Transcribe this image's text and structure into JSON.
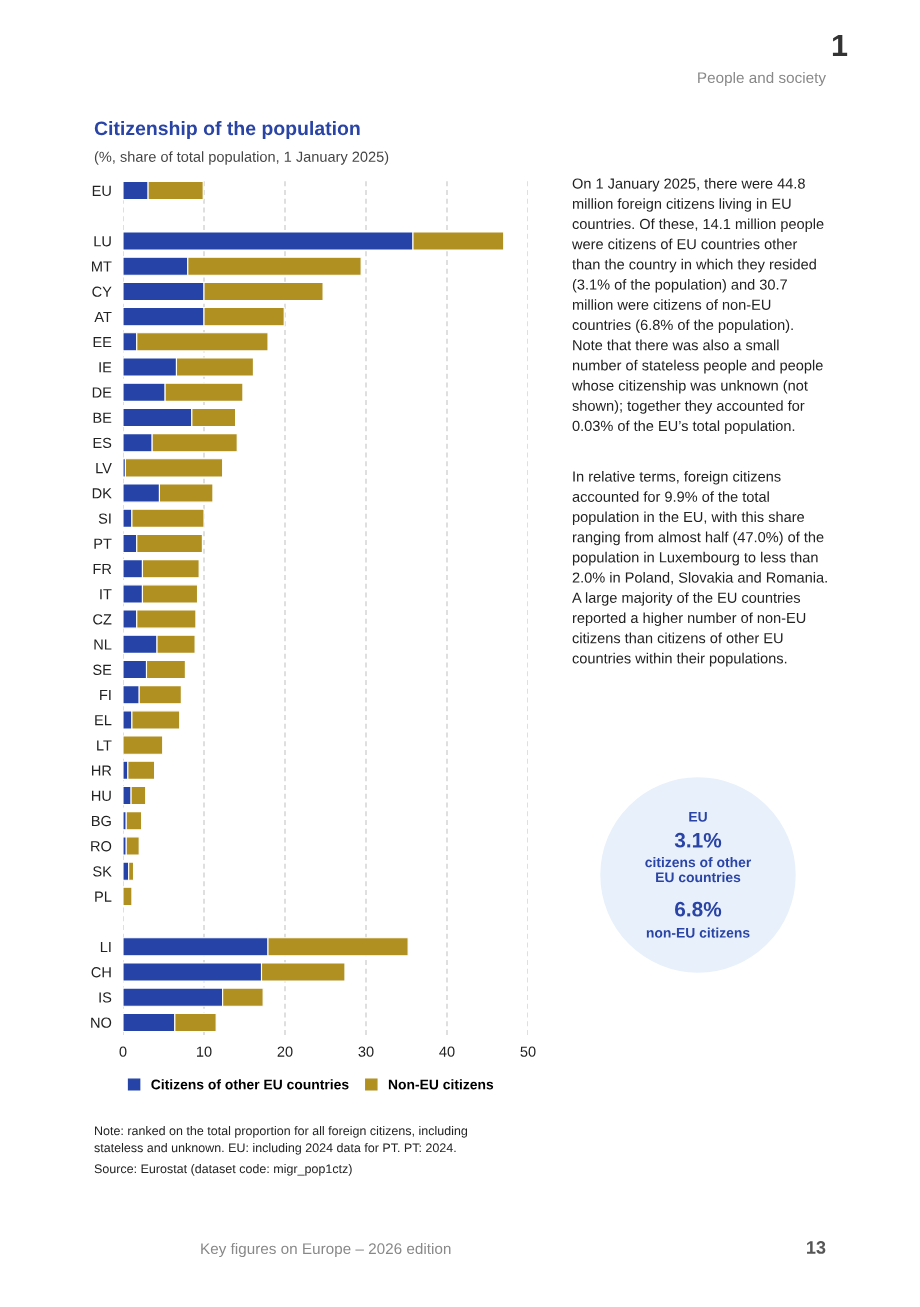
{
  "chart_data": [
    {
      "type": "bar",
      "orientation": "horizontal",
      "stacked": true,
      "title": "Citizenship of the population",
      "subtitle": "(%, share of total population, 1 January 2025)",
      "categories": [
        "EU",
        null,
        "LU",
        "MT",
        "CY",
        "AT",
        "EE",
        "IE",
        "DE",
        "BE",
        "ES",
        "LV",
        "DK",
        "SI",
        "PT",
        "FR",
        "IT",
        "CZ",
        "NL",
        "SE",
        "FI",
        "EL",
        "LT",
        "HR",
        "HU",
        "BG",
        "RO",
        "SK",
        "PL",
        null,
        "LI",
        "CH",
        "IS",
        "NO"
      ],
      "series": [
        {
          "name": "Citizens of other EU countries",
          "color": "#2644a8",
          "values": [
            3.1,
            null,
            35.8,
            8.0,
            10.0,
            10.0,
            1.7,
            6.6,
            5.2,
            8.5,
            3.6,
            0.3,
            4.5,
            1.1,
            1.7,
            2.4,
            2.4,
            1.7,
            4.2,
            2.9,
            2.0,
            1.1,
            null,
            0.6,
            1.0,
            0.4,
            0.4,
            0.7,
            null,
            null,
            17.9,
            17.1,
            12.3,
            6.4
          ]
        },
        {
          "name": "Non-EU citizens",
          "color": "#b09020",
          "values": [
            6.8,
            null,
            11.2,
            21.4,
            14.7,
            9.9,
            16.2,
            9.5,
            9.6,
            5.4,
            10.5,
            12.0,
            6.6,
            8.9,
            8.1,
            7.0,
            6.8,
            7.3,
            4.7,
            4.8,
            5.2,
            5.9,
            4.9,
            3.3,
            1.8,
            1.9,
            1.6,
            0.6,
            1.1,
            null,
            17.3,
            10.3,
            5.0,
            5.1
          ]
        }
      ],
      "xlim": [
        0,
        50
      ],
      "xticks": [
        0,
        10,
        20,
        30,
        40,
        50
      ],
      "grid": "x",
      "legend": "bottom",
      "annotations": [
        "Note: ranked on the total proportion for all foreign citizens, including stateless and unknown. EU: including 2024 data for PT. PT: 2024.",
        "Source: Eurostat (dataset code: migr_pop1ctz)"
      ]
    },
    {
      "type": "other",
      "annotations": [
        "1",
        "People and society",
        "On 1 January 2025, there were 44.8 million foreign citizens living in EU countries. Of these, 14.1 million people were citizens of EU countries other than the country in which they resided (3.1% of the population) and 30.7 million were citizens of non-EU countries (6.8% of the population). Note that there was also a small number of stateless people and people whose citizenship was unknown (not shown); together they accounted for 0.03% of the EU’s total population.",
        "In relative terms, foreign citizens accounted for 9.9% of the total population in the EU, with this share ranging from almost half (47.0%) of the population in Luxembourg to less than 2.0% in Poland, Slovakia and Romania. A large majority of the EU countries reported a higher number of non-EU citizens than citizens of other EU countries within their populations.",
        "EU",
        "3.1%",
        "citizens of other EU countries",
        "6.8%",
        "non-EU citizens",
        "Key figures on Europe – 2026 edition",
        "13"
      ]
    }
  ]
}
